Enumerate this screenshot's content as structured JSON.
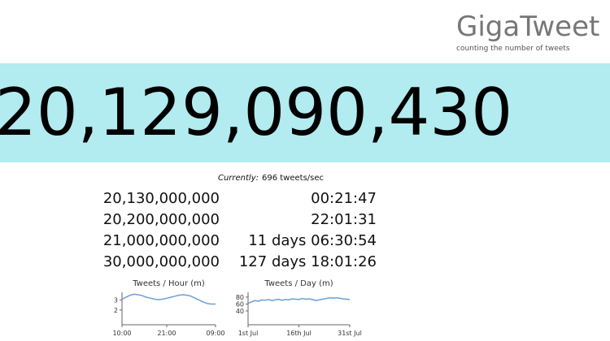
{
  "header": {
    "title": "GigaTweet",
    "subtitle": "counting the number of tweets"
  },
  "counter": "20,129,090,430",
  "current": {
    "label": "Currently:",
    "value": "696 tweets/sec"
  },
  "milestones": [
    [
      "20,130,000,000",
      "00:21:47"
    ],
    [
      "20,200,000,000",
      "22:01:31"
    ],
    [
      "21,000,000,000",
      "11 days 06:30:54"
    ],
    [
      "30,000,000,000",
      "127 days 18:01:26"
    ]
  ],
  "chart_data": [
    {
      "type": "line",
      "title": "Tweets / Hour (m)",
      "color": "#6a9fd8",
      "categories": [
        "10:00",
        null,
        null,
        null,
        null,
        null,
        null,
        null,
        null,
        null,
        null,
        "21:00",
        null,
        null,
        null,
        null,
        null,
        null,
        null,
        null,
        null,
        null,
        null,
        "09:00"
      ],
      "values": [
        3.1,
        3.3,
        3.5,
        3.6,
        3.55,
        3.45,
        3.3,
        3.2,
        3.1,
        3.05,
        3.1,
        3.2,
        3.3,
        3.4,
        3.5,
        3.55,
        3.5,
        3.4,
        3.2,
        3.0,
        2.8,
        2.65,
        2.6,
        2.6
      ],
      "ylim": [
        0.5,
        3.8
      ],
      "yticks": [
        2,
        3
      ]
    },
    {
      "type": "line",
      "title": "Tweets / Day (m)",
      "color": "#6a9fd8",
      "categories": [
        "1st Jul",
        null,
        null,
        null,
        null,
        null,
        null,
        null,
        null,
        null,
        null,
        null,
        null,
        null,
        null,
        "16th Jul",
        null,
        null,
        null,
        null,
        null,
        null,
        null,
        null,
        null,
        null,
        null,
        null,
        null,
        null,
        "31st Jul"
      ],
      "values": [
        62,
        66,
        70,
        68,
        72,
        71,
        73,
        70,
        72,
        74,
        71,
        73,
        72,
        75,
        74,
        73,
        76,
        74,
        75,
        73,
        70,
        72,
        74,
        76,
        78,
        77,
        78,
        77,
        75,
        74,
        73
      ],
      "ylim": [
        0,
        94
      ],
      "yticks": [
        40,
        60,
        80
      ]
    }
  ]
}
